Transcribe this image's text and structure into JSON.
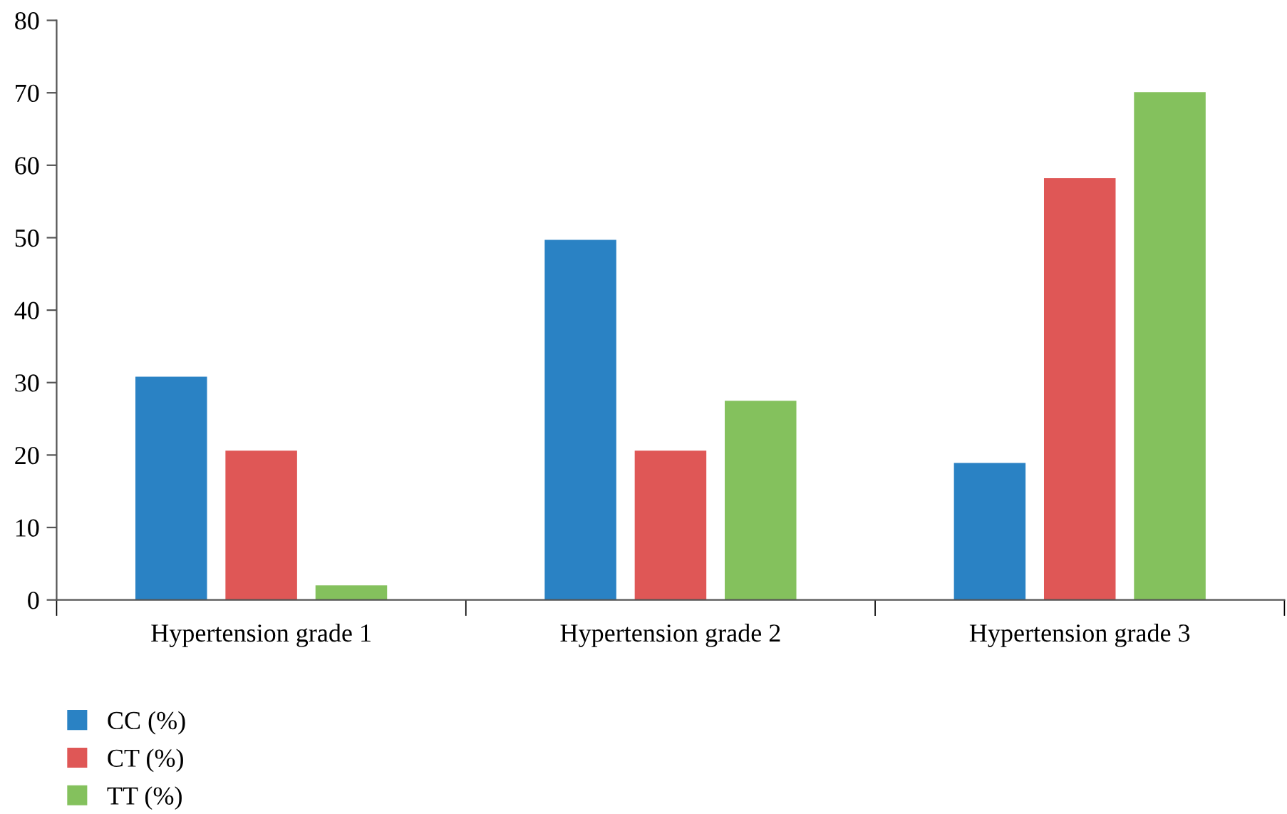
{
  "chart_data": {
    "type": "bar",
    "categories": [
      "Hypertension grade 1",
      "Hypertension grade 2",
      "Hypertension grade 3"
    ],
    "series": [
      {
        "name": "CC (%)",
        "color": "#2a82c4",
        "values": [
          30.8,
          49.7,
          18.9
        ]
      },
      {
        "name": "CT (%)",
        "color": "#df5756",
        "values": [
          20.6,
          20.6,
          58.2
        ]
      },
      {
        "name": "TT (%)",
        "color": "#84c15d",
        "values": [
          2.0,
          27.5,
          70.1
        ]
      }
    ],
    "ylim": [
      0,
      80
    ],
    "yticks": [
      0,
      10,
      20,
      30,
      40,
      50,
      60,
      70,
      80
    ],
    "grid": false,
    "legend": "bottom left"
  }
}
